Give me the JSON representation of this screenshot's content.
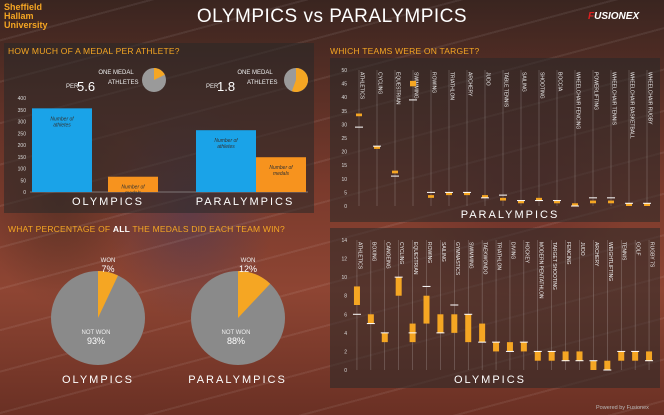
{
  "header": {
    "logo_left": [
      "Sheffield",
      "Hallam",
      "University"
    ],
    "title": "OLYMPICS vs PARALYMPICS",
    "logo_right_mark": "F",
    "logo_right_text": "USIONEX"
  },
  "footer": "Powered by Fusionex",
  "sections": {
    "medal_per_athlete": "HOW MUCH OF A MEDAL PER ATHLETE?",
    "percentage_prefix": "WHAT PERCENTAGE OF ",
    "percentage_bold": "ALL",
    "percentage_suffix": " THE MEDALS DID EACH TEAM WIN?",
    "on_target": "WHICH TEAMS WERE ON TARGET?"
  },
  "ratio": {
    "olympics": {
      "one_medal": "ONE MEDAL",
      "per": "PER",
      "value": "5.6",
      "athletes": "ATHLETES",
      "fraction": 0.178
    },
    "paralympics": {
      "one_medal": "ONE MEDAL",
      "per": "PER",
      "value": "1.8",
      "athletes": "ATHLETES",
      "fraction": 0.556
    }
  },
  "colors": {
    "accent": "#f5a623",
    "athletes_bar": "#1aa3e8",
    "medals_bar": "#f7931e",
    "pie_grey": "#8a8a8a"
  },
  "chart_data": [
    {
      "type": "bar",
      "name": "olympics-athletes-medals",
      "ylim": [
        0,
        400
      ],
      "yticks": [
        0,
        50,
        100,
        150,
        200,
        250,
        300,
        350,
        400
      ],
      "game": "OLYMPICS",
      "bars": [
        {
          "label": "Number of athletes",
          "value": 356
        },
        {
          "label": "Number of medals",
          "value": 65
        }
      ]
    },
    {
      "type": "bar",
      "name": "paralympics-athletes-medals",
      "ylim": [
        0,
        400
      ],
      "game": "PARALYMPICS",
      "bars": [
        {
          "label": "Number of athletes",
          "value": 263
        },
        {
          "label": "Number of medals",
          "value": 148
        }
      ]
    },
    {
      "type": "pie",
      "name": "olympics-medal-share",
      "game": "OLYMPICS",
      "slices": [
        {
          "label": "WON",
          "pct": "7%",
          "value": 7
        },
        {
          "label": "NOT WON",
          "pct": "93%",
          "value": 93
        }
      ]
    },
    {
      "type": "pie",
      "name": "paralympics-medal-share",
      "game": "PARALYMPICS",
      "slices": [
        {
          "label": "WON",
          "pct": "12%",
          "value": 12
        },
        {
          "label": "NOT WON",
          "pct": "88%",
          "value": 88
        }
      ]
    },
    {
      "type": "bar",
      "name": "paralympics-targets",
      "game": "PARALYMPICS",
      "ylim": [
        0,
        50
      ],
      "yticks": [
        0,
        5,
        10,
        15,
        20,
        25,
        30,
        35,
        40,
        45,
        50
      ],
      "categories": [
        "ATHLETICS",
        "CYCLING",
        "EQUESTRIAN",
        "SWIMMING",
        "ROWING",
        "TRIATHLON",
        "ARCHERY",
        "JUDO",
        "TABLE TENNIS",
        "SAILING",
        "SHOOTING",
        "BOCCIA",
        "WHEELCHAIR FENCING",
        "POWERLIFTING",
        "WHEELCHAIR TENNIS",
        "WHEELCHAIR BASKETBALL",
        "WHEELCHAIR RUGBY"
      ],
      "target_low": [
        33,
        21,
        12,
        44,
        3,
        4,
        4,
        3,
        2,
        1,
        2,
        1,
        0,
        1,
        1,
        0,
        0
      ],
      "target_high": [
        34,
        22,
        13,
        46,
        4,
        5,
        5,
        4,
        3,
        2,
        3,
        2,
        1,
        2,
        2,
        1,
        1
      ],
      "actual": [
        29,
        22,
        11,
        39,
        5,
        5,
        5,
        3,
        4,
        2,
        2,
        2,
        0,
        3,
        3,
        1,
        1
      ]
    },
    {
      "type": "bar",
      "name": "olympics-targets",
      "game": "OLYMPICS",
      "ylim": [
        0,
        14
      ],
      "yticks": [
        0,
        2,
        4,
        6,
        8,
        10,
        12,
        14
      ],
      "categories": [
        "ATHLETICS",
        "BOXING",
        "CANOEING",
        "CYCLING",
        "EQUESTRIAN",
        "ROWING",
        "SAILING",
        "GYMNASTICS",
        "SWIMMING",
        "TAEKWONDO",
        "TRIATHLON",
        "DIVING",
        "HOCKEY",
        "MODERN PENTATHLON",
        "TARGET SHOOTING",
        "FENCING",
        "JUDO",
        "ARCHERY",
        "WEIGHTLIFTING",
        "TENNIS",
        "GOLF",
        "RUGBY 7S"
      ],
      "target_low": [
        7,
        5,
        3,
        8,
        3,
        5,
        4,
        4,
        3,
        3,
        2,
        2,
        2,
        1,
        1,
        1,
        1,
        0,
        0,
        1,
        1,
        1
      ],
      "target_high": [
        9,
        6,
        4,
        10,
        5,
        8,
        6,
        6,
        6,
        5,
        3,
        3,
        3,
        2,
        2,
        2,
        2,
        1,
        1,
        2,
        2,
        2
      ],
      "actual": [
        6,
        5,
        4,
        10,
        4,
        9,
        4,
        7,
        6,
        3,
        3,
        2,
        3,
        2,
        2,
        1,
        1,
        1,
        0,
        2,
        2,
        1
      ]
    }
  ]
}
